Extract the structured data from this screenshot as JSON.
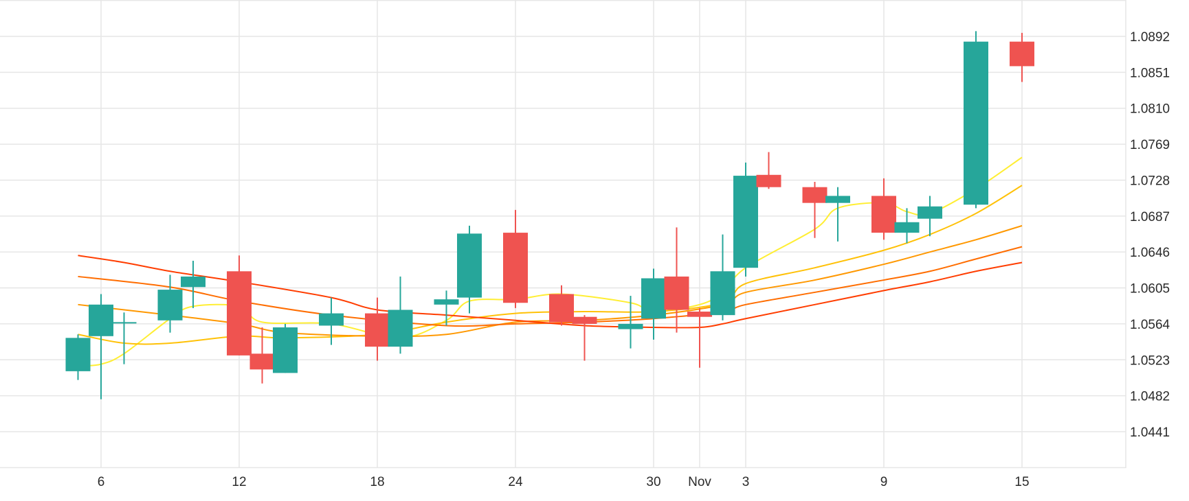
{
  "chart_data": {
    "type": "candlestick",
    "x_tick_labels": [
      "6",
      "12",
      "18",
      "24",
      "30",
      "Nov",
      "3",
      "9",
      "15"
    ],
    "y_tick_labels": [
      "1.0441",
      "1.0482",
      "1.0523",
      "1.0564",
      "1.0605",
      "1.0646",
      "1.0687",
      "1.0728",
      "1.0769",
      "1.0810",
      "1.0851",
      "1.0892"
    ],
    "ylim": [
      1.04,
      1.0924
    ],
    "grid": true,
    "colors": {
      "up": "#26a69a",
      "down": "#ef5350",
      "grid": "#e6e6e6",
      "text": "#2a2a2a"
    },
    "candles": [
      {
        "date": "Oct 5",
        "open": 1.051,
        "high": 1.0552,
        "low": 1.05,
        "close": 1.0548
      },
      {
        "date": "Oct 6",
        "open": 1.055,
        "high": 1.0598,
        "low": 1.0478,
        "close": 1.0586
      },
      {
        "date": "Oct 7",
        "open": 1.0566,
        "high": 1.0577,
        "low": 1.0518,
        "close": 1.0566
      },
      {
        "date": "Oct 9",
        "open": 1.0568,
        "high": 1.062,
        "low": 1.0554,
        "close": 1.0603
      },
      {
        "date": "Oct 10",
        "open": 1.0606,
        "high": 1.0636,
        "low": 1.0582,
        "close": 1.0618
      },
      {
        "date": "Oct 12",
        "open": 1.0624,
        "high": 1.0642,
        "low": 1.0528,
        "close": 1.0528
      },
      {
        "date": "Oct 13",
        "open": 1.053,
        "high": 1.056,
        "low": 1.0496,
        "close": 1.0512
      },
      {
        "date": "Oct 14",
        "open": 1.0508,
        "high": 1.0564,
        "low": 1.0508,
        "close": 1.056
      },
      {
        "date": "Oct 16",
        "open": 1.0562,
        "high": 1.0594,
        "low": 1.054,
        "close": 1.0576
      },
      {
        "date": "Oct 18",
        "open": 1.0576,
        "high": 1.0594,
        "low": 1.0522,
        "close": 1.0538
      },
      {
        "date": "Oct 19",
        "open": 1.0538,
        "high": 1.0618,
        "low": 1.053,
        "close": 1.058
      },
      {
        "date": "Oct 21",
        "open": 1.0586,
        "high": 1.0602,
        "low": 1.0562,
        "close": 1.0592
      },
      {
        "date": "Oct 22",
        "open": 1.0594,
        "high": 1.0676,
        "low": 1.0576,
        "close": 1.0667
      },
      {
        "date": "Oct 24",
        "open": 1.0668,
        "high": 1.0694,
        "low": 1.0582,
        "close": 1.0588
      },
      {
        "date": "Oct 26",
        "open": 1.0598,
        "high": 1.0608,
        "low": 1.0562,
        "close": 1.0566
      },
      {
        "date": "Oct 27",
        "open": 1.0572,
        "high": 1.0574,
        "low": 1.0522,
        "close": 1.0564
      },
      {
        "date": "Oct 29",
        "open": 1.0558,
        "high": 1.0596,
        "low": 1.0536,
        "close": 1.0564
      },
      {
        "date": "Oct 30",
        "open": 1.057,
        "high": 1.0627,
        "low": 1.0546,
        "close": 1.0616
      },
      {
        "date": "Oct 31",
        "open": 1.0618,
        "high": 1.0674,
        "low": 1.0554,
        "close": 1.058
      },
      {
        "date": "Nov 1",
        "open": 1.0578,
        "high": 1.0582,
        "low": 1.0514,
        "close": 1.0572
      },
      {
        "date": "Nov 2",
        "open": 1.0574,
        "high": 1.0666,
        "low": 1.0568,
        "close": 1.0624
      },
      {
        "date": "Nov 3",
        "open": 1.0628,
        "high": 1.0748,
        "low": 1.0618,
        "close": 1.0733
      },
      {
        "date": "Nov 4",
        "open": 1.0734,
        "high": 1.076,
        "low": 1.0718,
        "close": 1.072
      },
      {
        "date": "Nov 6",
        "open": 1.072,
        "high": 1.0726,
        "low": 1.0662,
        "close": 1.0702
      },
      {
        "date": "Nov 7",
        "open": 1.0702,
        "high": 1.072,
        "low": 1.0658,
        "close": 1.071
      },
      {
        "date": "Nov 9",
        "open": 1.071,
        "high": 1.073,
        "low": 1.066,
        "close": 1.0668
      },
      {
        "date": "Nov 10",
        "open": 1.0668,
        "high": 1.0696,
        "low": 1.0656,
        "close": 1.068
      },
      {
        "date": "Nov 11",
        "open": 1.0684,
        "high": 1.071,
        "low": 1.0664,
        "close": 1.0698
      },
      {
        "date": "Nov 13",
        "open": 1.07,
        "high": 1.0898,
        "low": 1.0696,
        "close": 1.0886
      },
      {
        "date": "Nov 15",
        "open": 1.0886,
        "high": 1.0896,
        "low": 1.084,
        "close": 1.0858
      }
    ],
    "moving_averages": [
      {
        "color": "#ffee33",
        "values": [
          {
            "date": "Oct 5",
            "value": 1.0516
          },
          {
            "date": "Oct 6",
            "value": 1.0518
          },
          {
            "date": "Oct 7",
            "value": 1.053
          },
          {
            "date": "Oct 9",
            "value": 1.057
          },
          {
            "date": "Oct 10",
            "value": 1.0584
          },
          {
            "date": "Oct 12",
            "value": 1.0584
          },
          {
            "date": "Oct 13",
            "value": 1.0566
          },
          {
            "date": "Oct 16",
            "value": 1.0564
          },
          {
            "date": "Oct 19",
            "value": 1.0548
          },
          {
            "date": "Oct 21",
            "value": 1.0568
          },
          {
            "date": "Oct 22",
            "value": 1.059
          },
          {
            "date": "Oct 24",
            "value": 1.0592
          },
          {
            "date": "Oct 26",
            "value": 1.0598
          },
          {
            "date": "Oct 29",
            "value": 1.0588
          },
          {
            "date": "Oct 30",
            "value": 1.0578
          },
          {
            "date": "Nov 1",
            "value": 1.0586
          },
          {
            "date": "Nov 2",
            "value": 1.06
          },
          {
            "date": "Nov 3",
            "value": 1.0628
          },
          {
            "date": "Nov 6",
            "value": 1.0672
          },
          {
            "date": "Nov 7",
            "value": 1.0696
          },
          {
            "date": "Nov 9",
            "value": 1.0702
          },
          {
            "date": "Nov 10",
            "value": 1.0692
          },
          {
            "date": "Nov 11",
            "value": 1.069
          },
          {
            "date": "Nov 13",
            "value": 1.0718
          },
          {
            "date": "Nov 15",
            "value": 1.0754
          }
        ]
      },
      {
        "color": "#ffc107",
        "values": [
          {
            "date": "Oct 5",
            "value": 1.0552
          },
          {
            "date": "Oct 7",
            "value": 1.0542
          },
          {
            "date": "Oct 9",
            "value": 1.0542
          },
          {
            "date": "Oct 12",
            "value": 1.055
          },
          {
            "date": "Oct 14",
            "value": 1.0548
          },
          {
            "date": "Oct 18",
            "value": 1.0552
          },
          {
            "date": "Oct 21",
            "value": 1.0566
          },
          {
            "date": "Oct 24",
            "value": 1.0576
          },
          {
            "date": "Oct 27",
            "value": 1.0578
          },
          {
            "date": "Oct 30",
            "value": 1.0578
          },
          {
            "date": "Nov 2",
            "value": 1.0588
          },
          {
            "date": "Nov 3",
            "value": 1.061
          },
          {
            "date": "Nov 6",
            "value": 1.0628
          },
          {
            "date": "Nov 9",
            "value": 1.0648
          },
          {
            "date": "Nov 11",
            "value": 1.0666
          },
          {
            "date": "Nov 13",
            "value": 1.069
          },
          {
            "date": "Nov 15",
            "value": 1.0722
          }
        ]
      },
      {
        "color": "#ff9800",
        "values": [
          {
            "date": "Oct 5",
            "value": 1.0586
          },
          {
            "date": "Oct 9",
            "value": 1.0574
          },
          {
            "date": "Oct 12",
            "value": 1.0564
          },
          {
            "date": "Oct 14",
            "value": 1.0554
          },
          {
            "date": "Oct 18",
            "value": 1.055
          },
          {
            "date": "Oct 21",
            "value": 1.0552
          },
          {
            "date": "Oct 24",
            "value": 1.0566
          },
          {
            "date": "Oct 27",
            "value": 1.0568
          },
          {
            "date": "Oct 30",
            "value": 1.0574
          },
          {
            "date": "Nov 2",
            "value": 1.0586
          },
          {
            "date": "Nov 3",
            "value": 1.06
          },
          {
            "date": "Nov 6",
            "value": 1.0614
          },
          {
            "date": "Nov 9",
            "value": 1.0632
          },
          {
            "date": "Nov 11",
            "value": 1.0646
          },
          {
            "date": "Nov 13",
            "value": 1.066
          },
          {
            "date": "Nov 15",
            "value": 1.0676
          }
        ]
      },
      {
        "color": "#ff6d00",
        "values": [
          {
            "date": "Oct 5",
            "value": 1.0618
          },
          {
            "date": "Oct 9",
            "value": 1.0606
          },
          {
            "date": "Oct 12",
            "value": 1.059
          },
          {
            "date": "Oct 16",
            "value": 1.0574
          },
          {
            "date": "Oct 21",
            "value": 1.0562
          },
          {
            "date": "Oct 24",
            "value": 1.0564
          },
          {
            "date": "Oct 27",
            "value": 1.0566
          },
          {
            "date": "Oct 30",
            "value": 1.057
          },
          {
            "date": "Nov 2",
            "value": 1.0578
          },
          {
            "date": "Nov 3",
            "value": 1.0586
          },
          {
            "date": "Nov 6",
            "value": 1.06
          },
          {
            "date": "Nov 9",
            "value": 1.0614
          },
          {
            "date": "Nov 11",
            "value": 1.0624
          },
          {
            "date": "Nov 13",
            "value": 1.0638
          },
          {
            "date": "Nov 15",
            "value": 1.0652
          }
        ]
      },
      {
        "color": "#ff3d00",
        "values": [
          {
            "date": "Oct 5",
            "value": 1.0642
          },
          {
            "date": "Oct 7",
            "value": 1.0634
          },
          {
            "date": "Oct 9",
            "value": 1.0624
          },
          {
            "date": "Oct 12",
            "value": 1.0612
          },
          {
            "date": "Oct 16",
            "value": 1.0594
          },
          {
            "date": "Oct 18",
            "value": 1.058
          },
          {
            "date": "Oct 21",
            "value": 1.0574
          },
          {
            "date": "Oct 24",
            "value": 1.0568
          },
          {
            "date": "Oct 27",
            "value": 1.0562
          },
          {
            "date": "Oct 30",
            "value": 1.056
          },
          {
            "date": "Nov 1",
            "value": 1.056
          },
          {
            "date": "Nov 2",
            "value": 1.0564
          },
          {
            "date": "Nov 3",
            "value": 1.057
          },
          {
            "date": "Nov 6",
            "value": 1.0586
          },
          {
            "date": "Nov 9",
            "value": 1.0602
          },
          {
            "date": "Nov 11",
            "value": 1.0612
          },
          {
            "date": "Nov 13",
            "value": 1.0624
          },
          {
            "date": "Nov 15",
            "value": 1.0634
          }
        ]
      }
    ]
  }
}
